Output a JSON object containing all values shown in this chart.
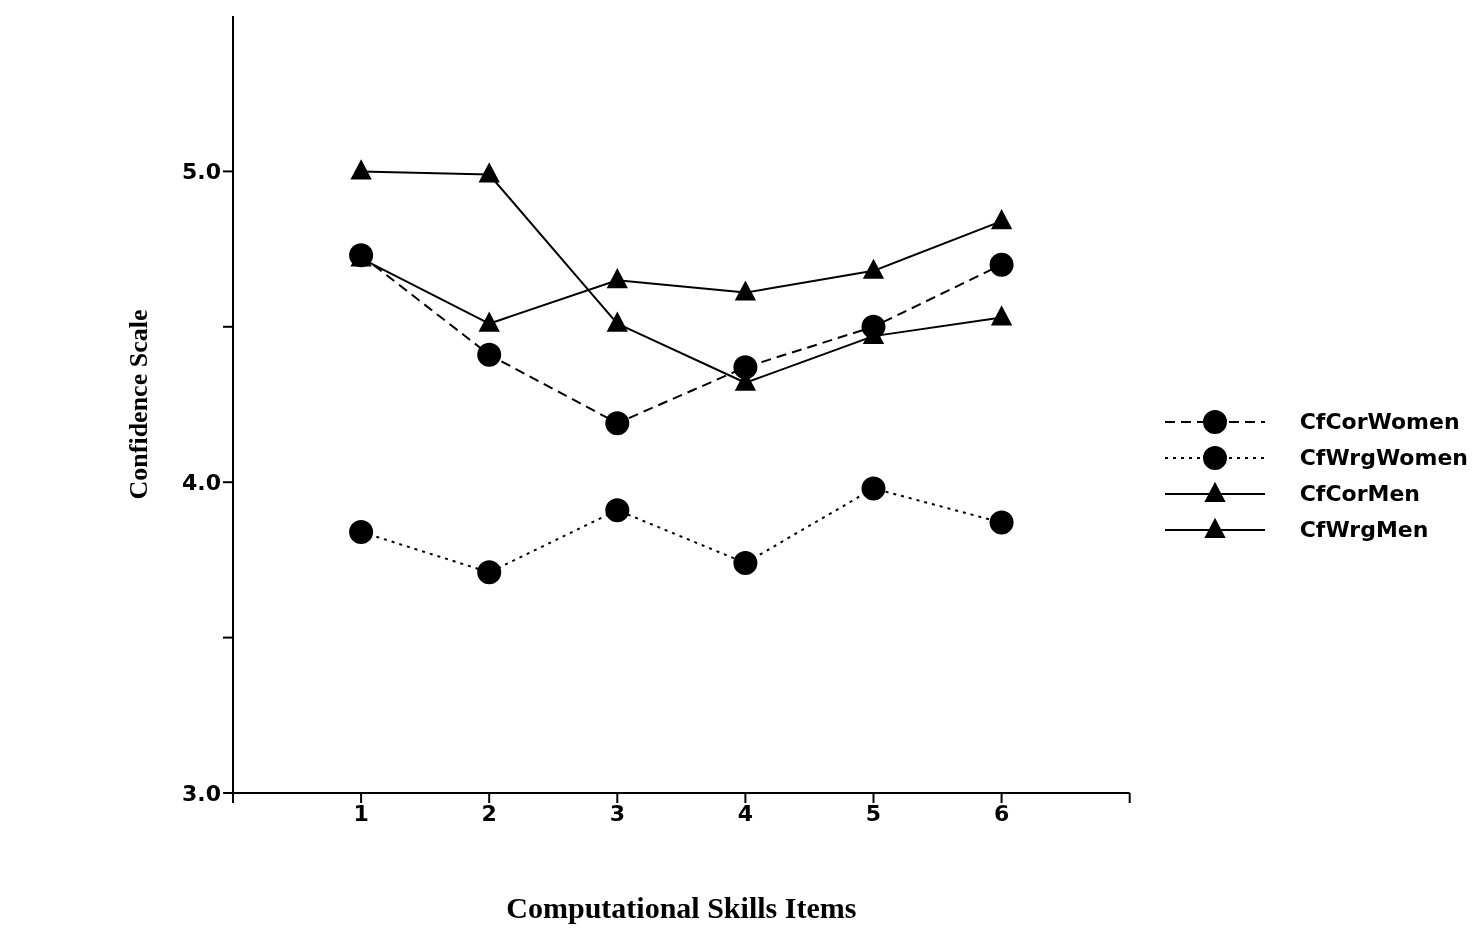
{
  "chart_data": {
    "type": "line",
    "xlabel": "Computational Skills Items",
    "ylabel": "Confidence Scale",
    "x": [
      1,
      2,
      3,
      4,
      5,
      6
    ],
    "xlim": [
      0,
      7
    ],
    "xticks": [
      {
        "value": 0,
        "label": null
      },
      1,
      2,
      3,
      4,
      5,
      6,
      {
        "value": 7,
        "label": null
      }
    ],
    "ylim": [
      3,
      5.5
    ],
    "yticks": [
      {
        "value": 3,
        "label": "3.0"
      },
      {
        "value": 3.5,
        "label": null
      },
      {
        "value": 4,
        "label": "4.0"
      },
      {
        "value": 4.5,
        "label": null
      },
      {
        "value": 5,
        "label": "5.0"
      }
    ],
    "grid": false,
    "legend": "right",
    "series": [
      {
        "name": "CfCorWomen",
        "color": "#000000",
        "marker": "circle",
        "line_style": "dashed",
        "values": [
          4.73,
          4.41,
          4.19,
          4.37,
          4.5,
          4.7
        ]
      },
      {
        "name": "CfWrgWomen",
        "color": "#000000",
        "marker": "circle",
        "line_style": "dotted",
        "values": [
          3.84,
          3.71,
          3.91,
          3.74,
          3.98,
          3.87
        ]
      },
      {
        "name": "CfCorMen",
        "color": "#000000",
        "marker": "triangle",
        "line_style": "solid",
        "values": [
          4.72,
          4.51,
          4.65,
          4.61,
          4.68,
          4.84
        ]
      },
      {
        "name": "CfWrgMen",
        "color": "#000000",
        "marker": "triangle",
        "line_style": "solid",
        "values": [
          5.0,
          4.99,
          4.51,
          4.32,
          4.47,
          4.53
        ]
      }
    ]
  }
}
